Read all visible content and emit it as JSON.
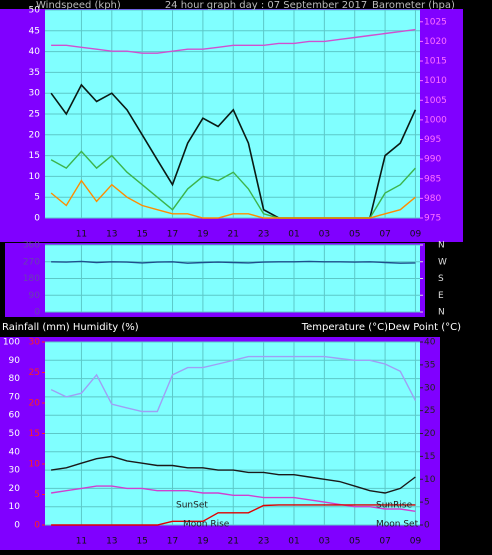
{
  "chart_data": [
    {
      "type": "line",
      "title": "24 hour graph day : 07 September 2017",
      "y_label": "Windspeed (kph)",
      "y2_label": "Barometer (hpa)",
      "x": [
        9,
        10,
        11,
        12,
        13,
        14,
        15,
        16,
        17,
        18,
        19,
        20,
        21,
        22,
        23,
        24,
        25,
        26,
        27,
        28,
        29,
        30,
        31,
        32,
        33
      ],
      "xlim": [
        8.6,
        33.3
      ],
      "xticks": [
        11,
        13,
        15,
        17,
        19,
        21,
        23,
        {
          "value": 25,
          "label": "01"
        },
        {
          "value": 27,
          "label": "03"
        },
        {
          "value": 29,
          "label": "05"
        },
        {
          "value": 31,
          "label": "07"
        },
        {
          "value": 33,
          "label": "09"
        }
      ],
      "ylim": [
        0,
        50
      ],
      "yticks": [
        0,
        5,
        10,
        15,
        20,
        25,
        30,
        35,
        40,
        45,
        50
      ],
      "y2lim": [
        975,
        1028
      ],
      "y2ticks": [
        975,
        980,
        985,
        990,
        995,
        1000,
        1005,
        1010,
        1015,
        1020,
        1025
      ],
      "grid": true,
      "series": [
        {
          "color": "#0a1a14",
          "values": [
            30,
            25,
            32,
            28,
            30,
            26,
            20,
            14,
            8,
            18,
            24,
            22,
            26,
            18,
            2,
            0,
            0,
            0,
            0,
            0,
            0,
            0,
            15,
            18,
            26
          ]
        },
        {
          "color": "#3cb44b",
          "values": [
            14,
            12,
            16,
            12,
            15,
            11,
            8,
            5,
            2,
            7,
            10,
            9,
            11,
            7,
            1,
            0,
            0,
            0,
            0,
            0,
            0,
            0,
            6,
            8,
            12
          ]
        },
        {
          "color": "#ff8c00",
          "values": [
            6,
            3,
            9,
            4,
            8,
            5,
            3,
            2,
            1,
            1,
            0,
            0,
            1,
            1,
            0,
            0,
            0,
            0,
            0,
            0,
            0,
            0,
            1,
            2,
            5
          ]
        },
        {
          "color": "#d050d0",
          "axis": "y2",
          "values": [
            1019,
            1019,
            1018.5,
            1018,
            1017.5,
            1017.5,
            1017,
            1017,
            1017.5,
            1018,
            1018,
            1018.5,
            1019,
            1019,
            1019,
            1019.5,
            1019.5,
            1020,
            1020,
            1020.5,
            1021,
            1021.5,
            1022,
            1022.5,
            1023
          ]
        }
      ]
    },
    {
      "type": "line",
      "x": [
        9,
        10,
        11,
        12,
        13,
        14,
        15,
        16,
        17,
        18,
        19,
        20,
        21,
        22,
        23,
        24,
        25,
        26,
        27,
        28,
        29,
        30,
        31,
        32,
        33
      ],
      "xlim": [
        8.6,
        33.3
      ],
      "ylim": [
        0,
        360
      ],
      "yticks": [
        0,
        90,
        180,
        270,
        360
      ],
      "y2lim": [
        0,
        360
      ],
      "y2ticks": [
        {
          "value": 360,
          "label": "N"
        },
        {
          "value": 270,
          "label": "W"
        },
        {
          "value": 180,
          "label": "S"
        },
        {
          "value": 90,
          "label": "E"
        },
        {
          "value": 0,
          "label": "N"
        }
      ],
      "grid": true,
      "series": [
        {
          "color": "#1e4f8c",
          "values": [
            270,
            268,
            272,
            266,
            270,
            268,
            264,
            268,
            270,
            262,
            266,
            268,
            266,
            264,
            268,
            270,
            270,
            272,
            270,
            270,
            268,
            270,
            266,
            262,
            264
          ]
        }
      ]
    },
    {
      "type": "line",
      "y_label": "Rainfall (mm)  Humidity (%)",
      "y2_label": "Temperature (°C)Dew Point (°C)",
      "x": [
        9,
        10,
        11,
        12,
        13,
        14,
        15,
        16,
        17,
        18,
        19,
        20,
        21,
        22,
        23,
        24,
        25,
        26,
        27,
        28,
        29,
        30,
        31,
        32,
        33
      ],
      "xlim": [
        8.6,
        33.3
      ],
      "xticks": [
        11,
        13,
        15,
        17,
        19,
        21,
        23,
        {
          "value": 25,
          "label": "01"
        },
        {
          "value": 27,
          "label": "03"
        },
        {
          "value": 29,
          "label": "05"
        },
        {
          "value": 31,
          "label": "07"
        },
        {
          "value": 33,
          "label": "09"
        }
      ],
      "ylim": [
        0,
        100
      ],
      "yticks": [
        0,
        10,
        20,
        30,
        40,
        50,
        60,
        70,
        80,
        90,
        100
      ],
      "y2lim": [
        0,
        40
      ],
      "y2ticks": [
        0,
        5,
        10,
        15,
        20,
        25,
        30,
        35,
        40
      ],
      "y3lim": [
        0,
        30
      ],
      "y3ticks": [
        0,
        5,
        10,
        15,
        20,
        25,
        30
      ],
      "grid": true,
      "annotations": [
        "SunSet",
        "SunRise",
        "Moon Rise",
        "Moon Set"
      ],
      "series": [
        {
          "color": "#9f9ff5",
          "values": [
            74,
            70,
            72,
            82,
            66,
            64,
            62,
            62,
            82,
            86,
            86,
            88,
            90,
            92,
            92,
            92,
            92,
            92,
            92,
            91,
            90,
            90,
            88,
            84,
            68
          ]
        },
        {
          "color": "#1a1a1a",
          "axis": "y2",
          "values": [
            12,
            12.5,
            13.5,
            14.5,
            15,
            14,
            13.5,
            13,
            13,
            12.5,
            12.5,
            12,
            12,
            11.5,
            11.5,
            11,
            11,
            10.5,
            10,
            9.5,
            8.5,
            7.5,
            7,
            8,
            10.5
          ]
        },
        {
          "color": "#d040d0",
          "axis": "y2",
          "values": [
            7,
            7.5,
            8,
            8.5,
            8.5,
            8,
            8,
            7.5,
            7.5,
            7.5,
            7,
            7,
            6.5,
            6.5,
            6,
            6,
            6,
            5.5,
            5,
            4.5,
            4,
            4,
            3.5,
            3.5,
            3
          ]
        },
        {
          "color": "#e00000",
          "axis": "y3",
          "values": [
            0,
            0,
            0,
            0,
            0,
            0,
            0,
            0,
            0.6,
            0.6,
            0.6,
            2,
            2,
            2,
            3.2,
            3.3,
            3.3,
            3.3,
            3.3,
            3.3,
            3.3,
            3.3,
            3.3,
            3.3,
            3.3
          ]
        }
      ]
    }
  ]
}
